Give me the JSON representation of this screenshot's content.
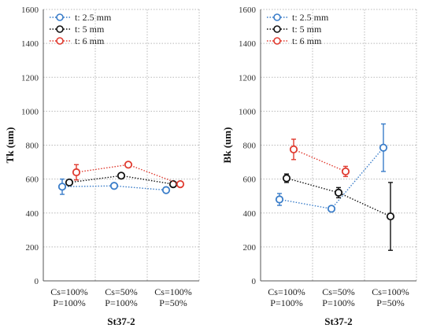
{
  "chart_data": [
    {
      "type": "scatter",
      "ylabel": "Tk (um)",
      "xlabel": "St37-2",
      "ylim": [
        0,
        1600
      ],
      "yticks": [
        0,
        200,
        400,
        600,
        800,
        1000,
        1200,
        1400,
        1600
      ],
      "categories": [
        [
          "Cs=100%",
          "P=100%"
        ],
        [
          "Cs=50%",
          "P=100%"
        ],
        [
          "Cs=100%",
          "P=50%"
        ]
      ],
      "grid": "horizontal-dotted",
      "legend_position": "top-left",
      "series": [
        {
          "name": "t: 2.5 mm",
          "color": "#3a7dc9",
          "values": [
            555,
            560,
            535
          ],
          "errors": [
            45,
            15,
            15
          ]
        },
        {
          "name": "t: 5 mm",
          "color": "#111111",
          "values": [
            580,
            620,
            570
          ],
          "errors": [
            15,
            15,
            15
          ]
        },
        {
          "name": "t: 6 mm",
          "color": "#e03a2f",
          "values": [
            640,
            685,
            570
          ],
          "errors": [
            45,
            15,
            15
          ]
        }
      ]
    },
    {
      "type": "scatter",
      "ylabel": "Bk (um)",
      "xlabel": "St37-2",
      "ylim": [
        0,
        1600
      ],
      "yticks": [
        0,
        200,
        400,
        600,
        800,
        1000,
        1200,
        1400,
        1600
      ],
      "categories": [
        [
          "Cs=100%",
          "P=100%"
        ],
        [
          "Cs=50%",
          "P=100%"
        ],
        [
          "Cs=100%",
          "P=50%"
        ]
      ],
      "grid": "horizontal-dotted",
      "legend_position": "top-left",
      "series": [
        {
          "name": "t: 2.5 mm",
          "color": "#3a7dc9",
          "values": [
            480,
            425,
            785
          ],
          "errors": [
            35,
            10,
            140
          ]
        },
        {
          "name": "t: 5 mm",
          "color": "#111111",
          "values": [
            605,
            520,
            380
          ],
          "errors": [
            25,
            30,
            200
          ]
        },
        {
          "name": "t: 6 mm",
          "color": "#e03a2f",
          "values": [
            775,
            645,
            null
          ],
          "errors": [
            60,
            30,
            null
          ]
        }
      ]
    }
  ]
}
